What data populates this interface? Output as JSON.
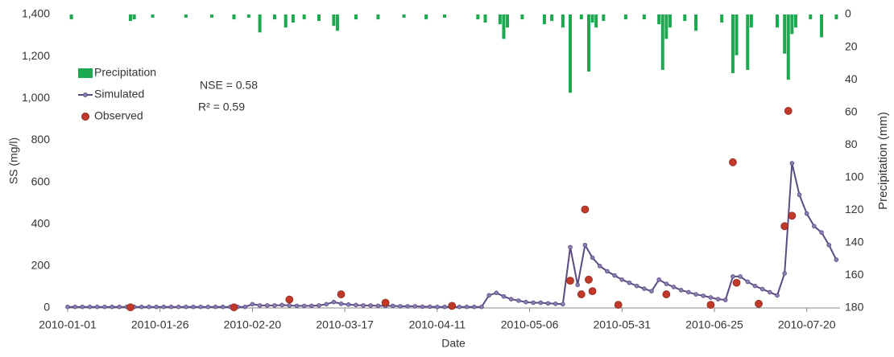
{
  "chart_data": {
    "type": "line",
    "x_label": "Date",
    "y_label": "SS (mg/l)",
    "y2_label": "Precipitation (mm)",
    "annotations": [
      "NSE = 0.58",
      "R² = 0.59"
    ],
    "xlim": [
      "2010-01-01",
      "2010-07-29"
    ],
    "xticks": [
      "2010-01-01",
      "2010-01-26",
      "2010-02-20",
      "2010-03-17",
      "2010-04-11",
      "2010-05-06",
      "2010-05-31",
      "2010-06-25",
      "2010-07-20"
    ],
    "ylim": [
      0,
      1400
    ],
    "yticks": [
      0,
      200,
      400,
      600,
      800,
      {
        "value": 1000,
        "label": "1,000"
      },
      {
        "value": 1200,
        "label": "1,200"
      },
      {
        "value": 1400,
        "label": "1,400"
      }
    ],
    "y2lim": [
      0,
      180
    ],
    "y2_inverted": true,
    "y2ticks": [
      0,
      20,
      40,
      60,
      80,
      100,
      120,
      140,
      160,
      180
    ],
    "legend": "upper left",
    "series": [
      {
        "name": "Precipitation",
        "kind": "bar",
        "axis": "y2",
        "color": "#1ea84f",
        "x": [
          "2010-01-02",
          "2010-01-18",
          "2010-01-19",
          "2010-01-24",
          "2010-02-02",
          "2010-02-09",
          "2010-02-15",
          "2010-02-19",
          "2010-02-22",
          "2010-02-26",
          "2010-03-01",
          "2010-03-03",
          "2010-03-06",
          "2010-03-10",
          "2010-03-14",
          "2010-03-15",
          "2010-03-20",
          "2010-03-26",
          "2010-04-02",
          "2010-04-08",
          "2010-04-13",
          "2010-04-22",
          "2010-04-24",
          "2010-04-28",
          "2010-04-29",
          "2010-04-30",
          "2010-05-04",
          "2010-05-10",
          "2010-05-12",
          "2010-05-15",
          "2010-05-17",
          "2010-05-20",
          "2010-05-22",
          "2010-05-23",
          "2010-05-24",
          "2010-05-26",
          "2010-06-01",
          "2010-06-06",
          "2010-06-10",
          "2010-06-11",
          "2010-06-12",
          "2010-06-13",
          "2010-06-17",
          "2010-06-20",
          "2010-06-27",
          "2010-06-30",
          "2010-07-01",
          "2010-07-04",
          "2010-07-05",
          "2010-07-12",
          "2010-07-14",
          "2010-07-15",
          "2010-07-16",
          "2010-07-17",
          "2010-07-21",
          "2010-07-24",
          "2010-07-28"
        ],
        "values": [
          3,
          4,
          3,
          2,
          2,
          2,
          3,
          2,
          11,
          3,
          8,
          5,
          3,
          4,
          7,
          10,
          3,
          3,
          2,
          3,
          2,
          3,
          5,
          6,
          15,
          8,
          3,
          6,
          4,
          8,
          48,
          3,
          35,
          5,
          8,
          4,
          3,
          3,
          6,
          34,
          15,
          8,
          4,
          10,
          5,
          36,
          25,
          34,
          8,
          8,
          24,
          40,
          12,
          8,
          3,
          14,
          3
        ]
      },
      {
        "name": "Simulated",
        "kind": "line",
        "axis": "y",
        "color": "#5b4a82",
        "x": [
          "2010-01-01",
          "2010-01-03",
          "2010-01-05",
          "2010-01-07",
          "2010-01-09",
          "2010-01-11",
          "2010-01-13",
          "2010-01-15",
          "2010-01-17",
          "2010-01-19",
          "2010-01-21",
          "2010-01-23",
          "2010-01-25",
          "2010-01-27",
          "2010-01-29",
          "2010-01-31",
          "2010-02-02",
          "2010-02-04",
          "2010-02-06",
          "2010-02-08",
          "2010-02-10",
          "2010-02-12",
          "2010-02-14",
          "2010-02-16",
          "2010-02-18",
          "2010-02-20",
          "2010-02-22",
          "2010-02-24",
          "2010-02-26",
          "2010-02-28",
          "2010-03-02",
          "2010-03-04",
          "2010-03-06",
          "2010-03-08",
          "2010-03-10",
          "2010-03-12",
          "2010-03-14",
          "2010-03-16",
          "2010-03-18",
          "2010-03-20",
          "2010-03-22",
          "2010-03-24",
          "2010-03-26",
          "2010-03-28",
          "2010-03-30",
          "2010-04-01",
          "2010-04-03",
          "2010-04-05",
          "2010-04-07",
          "2010-04-09",
          "2010-04-11",
          "2010-04-13",
          "2010-04-15",
          "2010-04-17",
          "2010-04-19",
          "2010-04-21",
          "2010-04-23",
          "2010-04-25",
          "2010-04-27",
          "2010-04-29",
          "2010-05-01",
          "2010-05-03",
          "2010-05-05",
          "2010-05-07",
          "2010-05-09",
          "2010-05-11",
          "2010-05-13",
          "2010-05-15",
          "2010-05-17",
          "2010-05-19",
          "2010-05-21",
          "2010-05-23",
          "2010-05-25",
          "2010-05-27",
          "2010-05-29",
          "2010-05-31",
          "2010-06-02",
          "2010-06-04",
          "2010-06-06",
          "2010-06-08",
          "2010-06-10",
          "2010-06-12",
          "2010-06-14",
          "2010-06-16",
          "2010-06-18",
          "2010-06-20",
          "2010-06-22",
          "2010-06-24",
          "2010-06-26",
          "2010-06-28",
          "2010-06-30",
          "2010-07-02",
          "2010-07-04",
          "2010-07-06",
          "2010-07-08",
          "2010-07-10",
          "2010-07-12",
          "2010-07-14",
          "2010-07-16",
          "2010-07-18",
          "2010-07-20",
          "2010-07-22",
          "2010-07-24",
          "2010-07-26",
          "2010-07-28"
        ],
        "values": [
          5,
          5,
          5,
          5,
          5,
          5,
          5,
          5,
          5,
          5,
          5,
          5,
          5,
          5,
          5,
          5,
          5,
          5,
          5,
          5,
          5,
          5,
          5,
          5,
          5,
          18,
          12,
          12,
          12,
          14,
          12,
          10,
          10,
          10,
          12,
          18,
          28,
          20,
          16,
          14,
          12,
          12,
          10,
          10,
          10,
          8,
          8,
          8,
          6,
          6,
          5,
          5,
          5,
          5,
          5,
          5,
          5,
          60,
          72,
          55,
          42,
          35,
          28,
          25,
          25,
          22,
          20,
          18,
          290,
          110,
          300,
          240,
          200,
          175,
          155,
          135,
          120,
          105,
          92,
          80,
          135,
          115,
          100,
          85,
          75,
          65,
          58,
          50,
          42,
          38,
          150,
          150,
          125,
          105,
          90,
          75,
          60,
          165,
          690,
          540,
          450,
          390,
          360,
          300,
          230
        ]
      },
      {
        "name": "Observed",
        "kind": "scatter",
        "axis": "y",
        "color": "#c0392b",
        "x": [
          "2010-01-18",
          "2010-02-15",
          "2010-03-02",
          "2010-03-16",
          "2010-03-28",
          "2010-04-15",
          "2010-05-17",
          "2010-05-20",
          "2010-05-21",
          "2010-05-22",
          "2010-05-23",
          "2010-05-30",
          "2010-06-12",
          "2010-06-24",
          "2010-06-30",
          "2010-07-01",
          "2010-07-07",
          "2010-07-14",
          "2010-07-15",
          "2010-07-16"
        ],
        "values": [
          3,
          3,
          40,
          65,
          25,
          10,
          130,
          65,
          470,
          135,
          80,
          15,
          65,
          15,
          695,
          120,
          20,
          390,
          940,
          440
        ]
      }
    ]
  }
}
